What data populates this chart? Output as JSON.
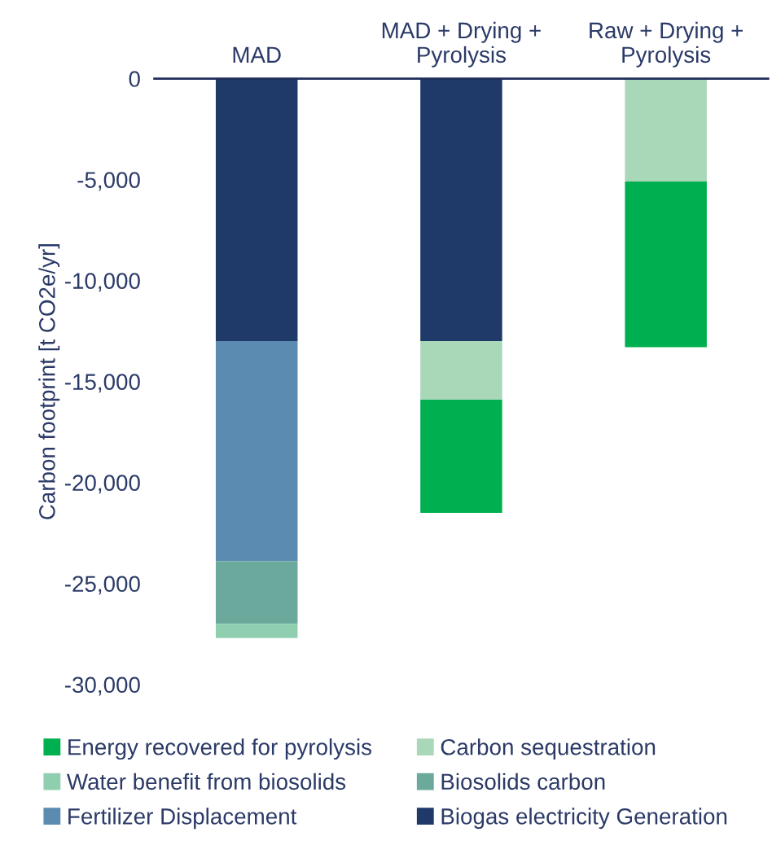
{
  "chart_data": {
    "type": "bar",
    "stacked": true,
    "ylabel": "Carbon footprint [t CO2e/yr]",
    "categories": [
      "MAD",
      "MAD + Drying + Pyrolysis",
      "Raw + Drying + Pyrolysis"
    ],
    "series": [
      {
        "name": "Biogas electricity Generation",
        "color": "#1f3a68",
        "values": [
          -13000,
          -13000,
          null
        ]
      },
      {
        "name": "Fertilizer Displacement",
        "color": "#5b8bb0",
        "values": [
          -10900,
          null,
          null
        ]
      },
      {
        "name": "Biosolids carbon",
        "color": "#6aa99b",
        "values": [
          -3100,
          null,
          null
        ]
      },
      {
        "name": "Water benefit from biosolids",
        "color": "#8fcfb0",
        "values": [
          -700,
          null,
          null
        ]
      },
      {
        "name": "Carbon sequestration",
        "color": "#a9d8b8",
        "values": [
          null,
          -2900,
          -5100
        ]
      },
      {
        "name": "Energy recovered for pyrolysis",
        "color": "#00b050",
        "values": [
          null,
          -5600,
          -8200
        ]
      }
    ],
    "ylim": [
      -30000,
      0
    ],
    "yticks": [
      0,
      {
        "value": -5000,
        "label": "-5,000"
      },
      {
        "value": -10000,
        "label": "-10,000"
      },
      {
        "value": -15000,
        "label": "-15,000"
      },
      {
        "value": -20000,
        "label": "-20,000"
      },
      {
        "value": -25000,
        "label": "-25,000"
      },
      {
        "value": -30000,
        "label": "-30,000"
      }
    ],
    "grid": false,
    "legend": "bottom"
  }
}
